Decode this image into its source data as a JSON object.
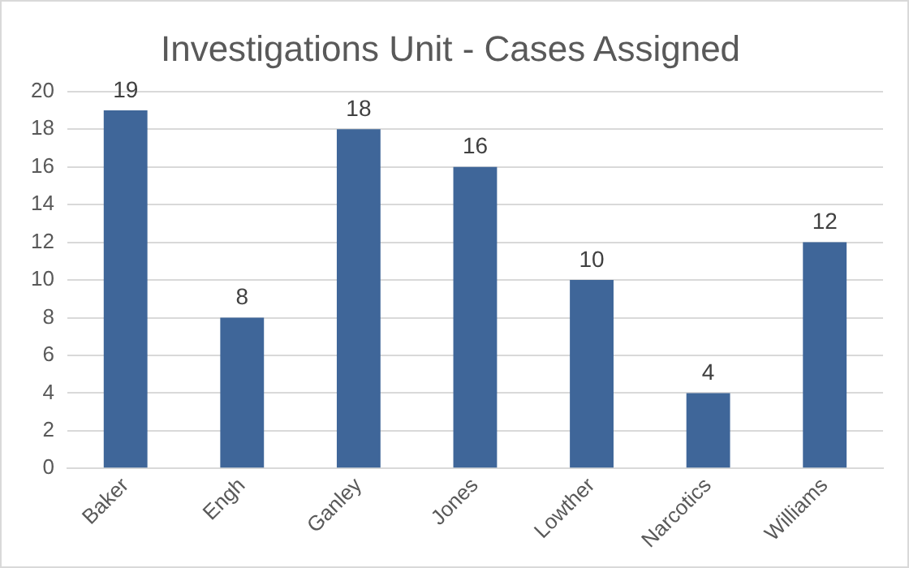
{
  "chart_data": {
    "type": "bar",
    "title": "Investigations Unit - Cases Assigned",
    "categories": [
      "Baker",
      "Engh",
      "Ganley",
      "Jones",
      "Lowther",
      "Narcotics",
      "Williams"
    ],
    "values": [
      19,
      8,
      18,
      16,
      10,
      4,
      12
    ],
    "color": "#3f6699",
    "ylim": [
      0,
      20
    ],
    "yticks": [
      0,
      2,
      4,
      6,
      8,
      10,
      12,
      14,
      16,
      18,
      20
    ],
    "grid": "y",
    "data_labels": true
  }
}
